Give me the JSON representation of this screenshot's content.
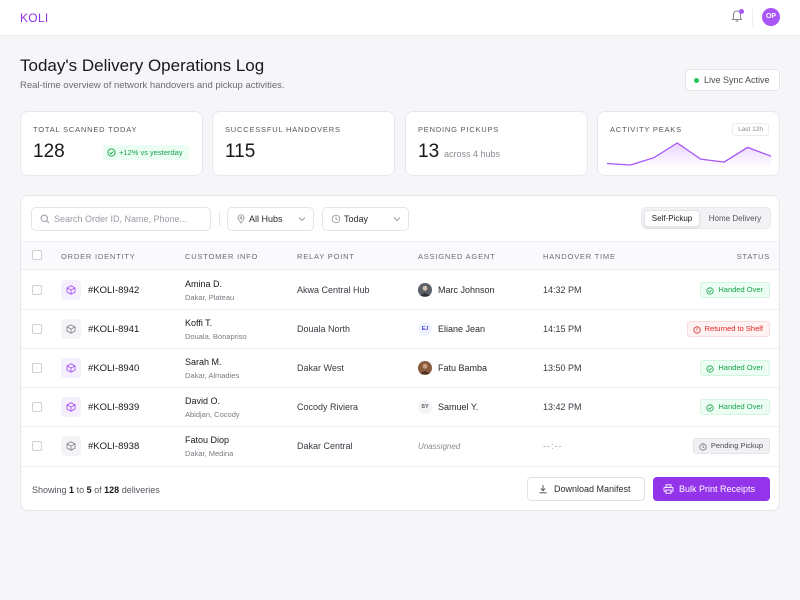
{
  "app": {
    "brand": "KOLI",
    "user_initials": "OP"
  },
  "header": {
    "title": "Today's Delivery Operations Log",
    "subtitle": "Real-time overview of network handovers and pickup activities.",
    "sync_label": "Live Sync Active"
  },
  "stats": {
    "total_scanned": {
      "label": "Total Scanned Today",
      "value": "128",
      "badge": "+12% vs yesterday"
    },
    "handovers": {
      "label": "Successful Handovers",
      "value": "115"
    },
    "pending": {
      "label": "Pending Pickups",
      "value": "13",
      "extra": "across 4 hubs"
    },
    "peaks": {
      "label": "Activity Peaks",
      "range": "Last 12h",
      "spark_values": [
        6,
        5,
        10,
        20,
        9,
        7,
        17,
        11
      ]
    }
  },
  "filters": {
    "search_placeholder": "Search Order ID, Name, Phone...",
    "hub": "All Hubs",
    "date": "Today",
    "segments": [
      "Self-Pickup",
      "Home Delivery"
    ],
    "active_segment": 0
  },
  "table": {
    "columns": [
      "Order Identity",
      "Customer Info",
      "Relay Point",
      "Assigned Agent",
      "Handover Time",
      "Status"
    ],
    "rows": [
      {
        "order": "#KOLI-8942",
        "name": "Amina D.",
        "location": "Dakar, Plateau",
        "relay": "Akwa Central Hub",
        "agent": "Marc Johnson",
        "agent_initials": "",
        "time": "14:32 PM",
        "status": "Handed Over"
      },
      {
        "order": "#KOLI-8941",
        "name": "Koffi T.",
        "location": "Douala, Bonapriso",
        "relay": "Douala North",
        "agent": "Eliane Jean",
        "agent_initials": "EJ",
        "time": "14:15 PM",
        "status": "Returned to Shelf"
      },
      {
        "order": "#KOLI-8940",
        "name": "Sarah M.",
        "location": "Dakar, Almadies",
        "relay": "Dakar West",
        "agent": "Fatu Bamba",
        "agent_initials": "",
        "time": "13:50 PM",
        "status": "Handed Over"
      },
      {
        "order": "#KOLI-8939",
        "name": "David O.",
        "location": "Abidjan, Cocody",
        "relay": "Cocody Riviera",
        "agent": "Samuel Y.",
        "agent_initials": "SY",
        "time": "13:42 PM",
        "status": "Handed Over"
      },
      {
        "order": "#KOLI-8938",
        "name": "Fatou Diop",
        "location": "Dakar, Medina",
        "relay": "Dakar Central",
        "agent": "Unassigned",
        "agent_initials": "",
        "time": "--:--",
        "status": "Pending Pickup"
      }
    ]
  },
  "footer": {
    "showing_prefix": "Showing",
    "from": "1",
    "to_word": "to",
    "to": "5",
    "of_word": "of",
    "total": "128",
    "suffix": "deliveries",
    "download_label": "Download Manifest",
    "print_label": "Bulk Print Receipts"
  },
  "colors": {
    "accent": "#9333ea",
    "success": "#16a34a",
    "danger": "#dc2626",
    "live": "#22c55e"
  },
  "icons": {
    "notifications": "bell-icon",
    "package": "package-icon",
    "search": "search-icon",
    "hub": "location-pin-icon",
    "date": "clock-icon",
    "download": "download-icon",
    "print": "printer-icon",
    "status": "check-circle-icon"
  }
}
